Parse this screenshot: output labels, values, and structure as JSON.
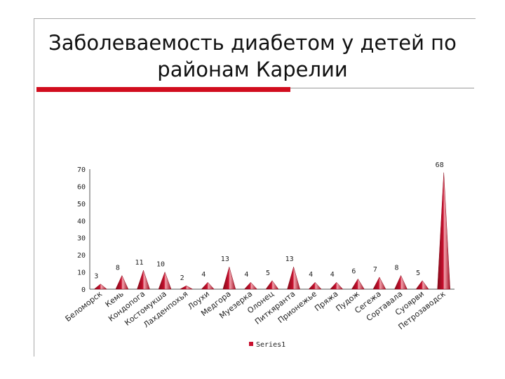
{
  "slide": {
    "title_line1": "Заболеваемость диабетом у детей по",
    "title_line2": "районам Карелии"
  },
  "chart_data": {
    "type": "area",
    "categories": [
      "Беломорск",
      "Кемь",
      "Кондопога",
      "Костомукша",
      "Лахденпохья",
      "Лоухи",
      "Медгора",
      "Муезерка",
      "Олонец",
      "Питкяранта",
      "Прионежье",
      "Пряжа",
      "Пудож",
      "Сегежа",
      "Сортавала",
      "Суоярви",
      "Петрозаводск"
    ],
    "series": [
      {
        "name": "Series1",
        "values": [
          3,
          8,
          11,
          10,
          2,
          4,
          13,
          4,
          5,
          13,
          4,
          4,
          6,
          7,
          8,
          5,
          68
        ]
      }
    ],
    "ylim": [
      0,
      70
    ],
    "yticks": [
      0,
      10,
      20,
      30,
      40,
      50,
      60,
      70
    ],
    "legend": "bottom",
    "grid": false,
    "colors": {
      "series1": "#c8102e",
      "series1_light": "#f2a3ad"
    }
  }
}
